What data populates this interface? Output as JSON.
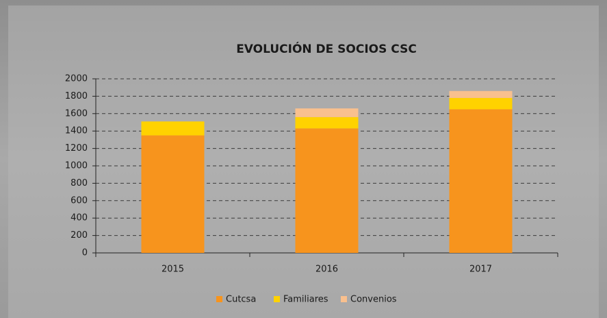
{
  "chart_data": {
    "type": "stacked-bar",
    "title": "EVOLUCIÓN DE SOCIOS CSC",
    "categories": [
      "2015",
      "2016",
      "2017"
    ],
    "series": [
      {
        "name": "Cutcsa",
        "color": "#f7941d",
        "values": [
          1350,
          1430,
          1650
        ]
      },
      {
        "name": "Familiares",
        "color": "#ffd200",
        "values": [
          160,
          130,
          130
        ]
      },
      {
        "name": "Convenios",
        "color": "#f9c08e",
        "values": [
          0,
          100,
          80
        ]
      }
    ],
    "ylim": [
      0,
      2000
    ],
    "yticks": [
      0,
      200,
      400,
      600,
      800,
      1000,
      1200,
      1400,
      1600,
      1800,
      2000
    ],
    "grid": true,
    "legend": "bottom"
  }
}
